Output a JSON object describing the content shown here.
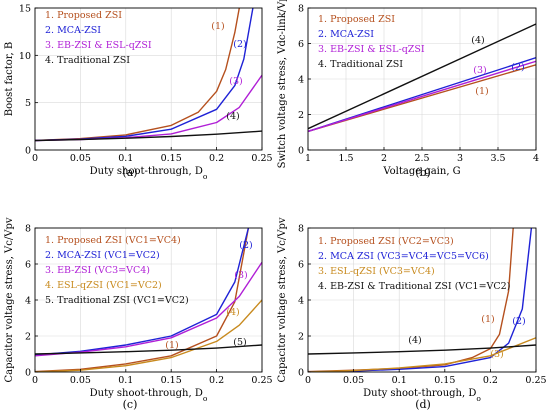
{
  "chart_data": [
    {
      "panel": "(a)",
      "type": "line",
      "xlabel": "Duty shoot-through, D",
      "xlabel_sub": "o",
      "ylabel": "Boost factor, B",
      "xlim": [
        0,
        0.25
      ],
      "ylim": [
        0,
        15
      ],
      "xticks": [
        "0",
        "0.05",
        "0.1",
        "0.15",
        "0.2",
        "0.25"
      ],
      "yticks": [
        "0",
        "5",
        "10",
        "15"
      ],
      "legend_position": "top-left",
      "series": [
        {
          "name": "1. Proposed ZSI",
          "color": "#b5501e",
          "annotation": "(1)",
          "x": [
            0,
            0.05,
            0.1,
            0.15,
            0.18,
            0.2,
            0.21,
            0.22,
            0.225
          ],
          "y": [
            1,
            1.2,
            1.6,
            2.6,
            4,
            6.2,
            8.5,
            12.4,
            15
          ]
        },
        {
          "name": "2. MCA-ZSI",
          "color": "#1f22d6",
          "annotation": "(2)",
          "x": [
            0,
            0.05,
            0.1,
            0.15,
            0.2,
            0.22,
            0.23,
            0.24
          ],
          "y": [
            1,
            1.15,
            1.45,
            2.2,
            4.3,
            6.8,
            9.6,
            15
          ]
        },
        {
          "name": "3. EB-ZSI & ESL-qZSI",
          "color": "#b01fd6",
          "annotation": "(3)",
          "x": [
            0,
            0.05,
            0.1,
            0.15,
            0.2,
            0.225,
            0.25
          ],
          "y": [
            1,
            1.11,
            1.3,
            1.7,
            2.9,
            4.5,
            7.9
          ]
        },
        {
          "name": "4. Traditional ZSI",
          "color": "#111111",
          "annotation": "(4)",
          "x": [
            0,
            0.05,
            0.1,
            0.15,
            0.2,
            0.25
          ],
          "y": [
            1,
            1.11,
            1.25,
            1.43,
            1.67,
            2
          ]
        }
      ]
    },
    {
      "panel": "(b)",
      "type": "line",
      "xlabel": "Voltage gain, G",
      "ylabel": "Switch voltage stress, Vdc-link/Vpv",
      "xlim": [
        1,
        4
      ],
      "ylim": [
        0,
        8
      ],
      "xticks": [
        "1",
        "1.5",
        "2",
        "2.5",
        "3",
        "3.5",
        "4"
      ],
      "yticks": [
        "0",
        "2",
        "4",
        "6",
        "8"
      ],
      "legend_position": "top-left",
      "series": [
        {
          "name": "1. Proposed ZSI",
          "color": "#b5501e",
          "annotation": "(1)",
          "x": [
            1,
            4
          ],
          "y": [
            1.05,
            4.8
          ]
        },
        {
          "name": "2. MCA-ZSI",
          "color": "#1f22d6",
          "annotation": "(2)",
          "x": [
            1,
            4
          ],
          "y": [
            1.05,
            5.2
          ]
        },
        {
          "name": "3. EB-ZSI & ESL-qZSI",
          "color": "#b01fd6",
          "annotation": "(3)",
          "x": [
            1,
            4
          ],
          "y": [
            1.05,
            5.0
          ]
        },
        {
          "name": "4. Traditional ZSI",
          "color": "#111111",
          "annotation": "(4)",
          "x": [
            1,
            4
          ],
          "y": [
            1.2,
            7.1
          ]
        }
      ]
    },
    {
      "panel": "(c)",
      "type": "line",
      "xlabel": "Duty shoot-through, D",
      "xlabel_sub": "o",
      "ylabel": "Capacitor voltage stress, Vc/Vpv",
      "xlim": [
        0,
        0.25
      ],
      "ylim": [
        0,
        8
      ],
      "xticks": [
        "0",
        "0.05",
        "0.1",
        "0.15",
        "0.2",
        "0.25"
      ],
      "yticks": [
        "0",
        "2",
        "4",
        "6",
        "8"
      ],
      "legend_position": "top-left",
      "series": [
        {
          "name": "1. Proposed ZSI (VC1=VC4)",
          "color": "#b5501e",
          "annotation": "(1)",
          "x": [
            0,
            0.05,
            0.1,
            0.15,
            0.2,
            0.22,
            0.235
          ],
          "y": [
            0.02,
            0.15,
            0.45,
            0.9,
            2.0,
            3.9,
            8
          ]
        },
        {
          "name": "2. MCA-ZSI (VC1=VC2)",
          "color": "#1f22d6",
          "annotation": "(2)",
          "x": [
            0,
            0.05,
            0.1,
            0.15,
            0.2,
            0.22,
            0.235
          ],
          "y": [
            0.95,
            1.15,
            1.5,
            2.0,
            3.2,
            5.0,
            8
          ]
        },
        {
          "name": "3. EB-ZSI (VC3=VC4)",
          "color": "#b01fd6",
          "annotation": "(3)",
          "x": [
            0,
            0.05,
            0.1,
            0.15,
            0.2,
            0.225,
            0.25
          ],
          "y": [
            0.9,
            1.1,
            1.4,
            1.9,
            3.0,
            4.2,
            6.1
          ]
        },
        {
          "name": "4. ESL-qZSI (VC1=VC2)",
          "color": "#c88a1e",
          "annotation": "(4)",
          "x": [
            0,
            0.05,
            0.1,
            0.15,
            0.2,
            0.225,
            0.25
          ],
          "y": [
            0,
            0.1,
            0.35,
            0.8,
            1.7,
            2.6,
            4.0
          ]
        },
        {
          "name": "5. Traditional ZSI (VC1=VC2)",
          "color": "#111111",
          "annotation": "(5)",
          "x": [
            0,
            0.05,
            0.1,
            0.15,
            0.2,
            0.25
          ],
          "y": [
            1.0,
            1.06,
            1.13,
            1.21,
            1.33,
            1.5
          ]
        }
      ]
    },
    {
      "panel": "(d)",
      "type": "line",
      "xlabel": "Duty shoot-through, D",
      "xlabel_sub": "o",
      "ylabel": "Capacitor voltage stress, Vc/Vpv",
      "xlim": [
        0,
        0.25
      ],
      "ylim": [
        0,
        8
      ],
      "xticks": [
        "0",
        "0.05",
        "0.1",
        "0.15",
        "0.2",
        "0.25"
      ],
      "yticks": [
        "0",
        "2",
        "4",
        "6",
        "8"
      ],
      "legend_position": "top-left",
      "series": [
        {
          "name": "1. Proposed ZSI (VC2=VC3)",
          "color": "#b5501e",
          "annotation": "(1)",
          "x": [
            0,
            0.05,
            0.1,
            0.15,
            0.18,
            0.2,
            0.21,
            0.22,
            0.225
          ],
          "y": [
            0.02,
            0.1,
            0.2,
            0.4,
            0.8,
            1.3,
            2.1,
            4.5,
            8
          ]
        },
        {
          "name": "2. MCA ZSI (VC3=VC4=VC5=VC6)",
          "color": "#1f22d6",
          "annotation": "(2)",
          "x": [
            0,
            0.05,
            0.1,
            0.15,
            0.2,
            0.22,
            0.235,
            0.245
          ],
          "y": [
            0,
            0.05,
            0.15,
            0.3,
            0.8,
            1.6,
            3.5,
            8
          ]
        },
        {
          "name": "3. ESL-qZSI (VC3=VC4)",
          "color": "#c88a1e",
          "annotation": "(3)",
          "x": [
            0,
            0.05,
            0.1,
            0.15,
            0.2,
            0.25
          ],
          "y": [
            0,
            0.08,
            0.22,
            0.45,
            0.9,
            1.9
          ]
        },
        {
          "name": "4. EB-ZSI & Traditional ZSI (VC1=VC2)",
          "color": "#111111",
          "annotation": "(4)",
          "x": [
            0,
            0.05,
            0.1,
            0.15,
            0.2,
            0.25
          ],
          "y": [
            1.0,
            1.06,
            1.13,
            1.21,
            1.33,
            1.5
          ]
        }
      ]
    }
  ]
}
